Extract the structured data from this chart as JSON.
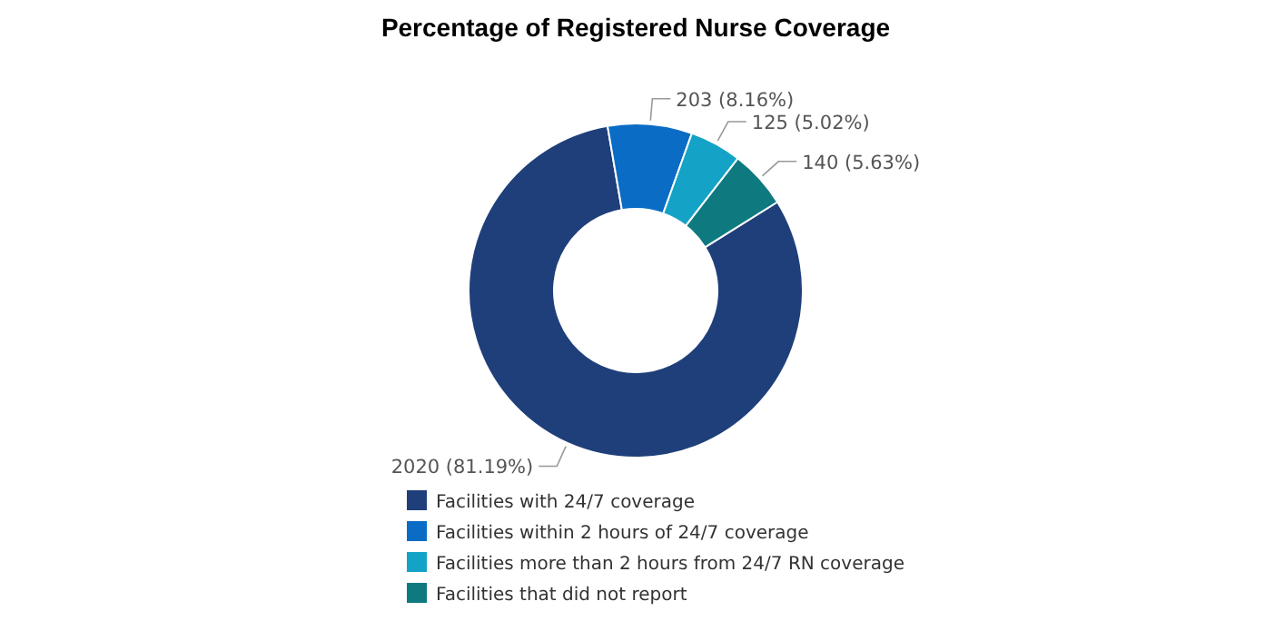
{
  "chart_data": {
    "type": "donut",
    "title": "Percentage of Registered Nurse Coverage",
    "categories": [
      "Facilities with 24/7 coverage",
      "Facilities within 2 hours of 24/7 coverage",
      "Facilities more than 2 hours from 24/7 RN coverage",
      "Facilities that did not report"
    ],
    "values": [
      2020,
      203,
      125,
      140
    ],
    "colors": [
      "#1f3f7a",
      "#0a6cc4",
      "#14a3c7",
      "#0e7a80"
    ],
    "value_labels": [
      "2020 (81.19%)",
      "203 (8.16%)",
      "125 (5.02%)",
      "140 (5.63%)"
    ],
    "legend": "bottom"
  }
}
